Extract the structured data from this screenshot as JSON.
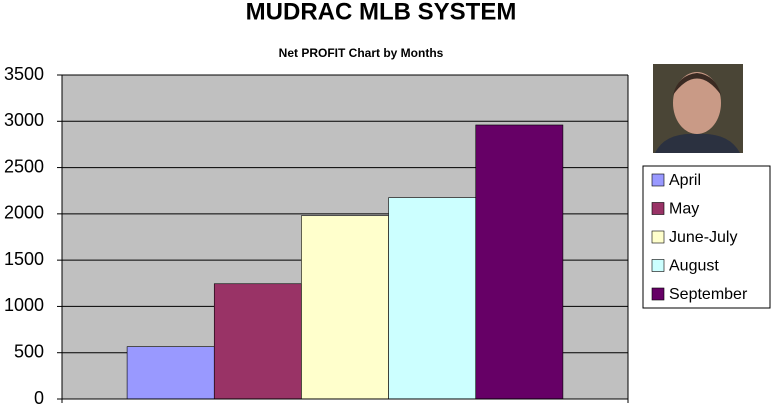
{
  "chart_data": {
    "type": "bar",
    "title": "MUDRAC MLB SYSTEM",
    "subtitle": "Net PROFIT Chart by Months",
    "categories": [
      null
    ],
    "series": [
      {
        "name": "April",
        "color": "#9999ff",
        "values": [
          565
        ]
      },
      {
        "name": "May",
        "color": "#993366",
        "values": [
          1245
        ]
      },
      {
        "name": "June-July",
        "color": "#ffffcc",
        "values": [
          1980
        ]
      },
      {
        "name": "August",
        "color": "#ccffff",
        "values": [
          2175
        ]
      },
      {
        "name": "September",
        "color": "#660066",
        "values": [
          2960
        ]
      }
    ],
    "ylim": [
      0,
      3500
    ],
    "yticks": [
      0,
      500,
      1000,
      1500,
      2000,
      2500,
      3000,
      3500
    ],
    "grid": true,
    "legend": "right"
  }
}
